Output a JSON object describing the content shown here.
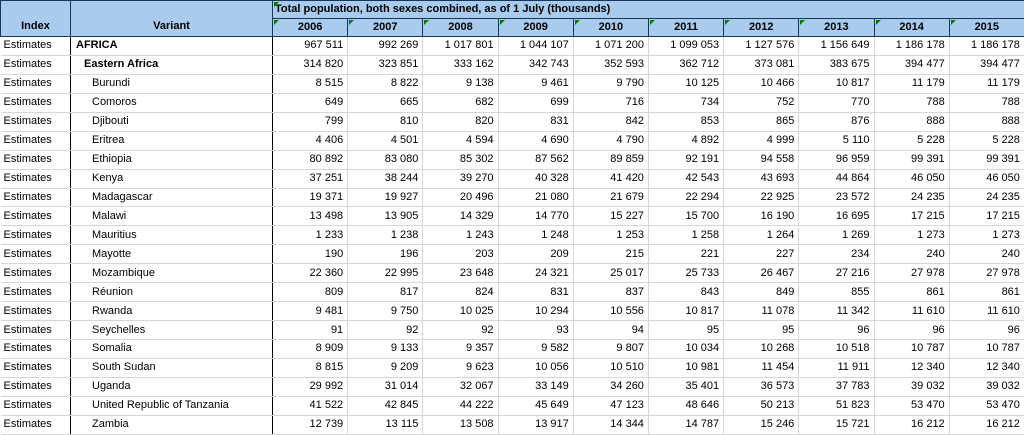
{
  "colors": {
    "header_bg": "#a9ccee",
    "header_border": "#16365c",
    "grid_line": "#d6d6d6",
    "column_border": "#000000",
    "comment_marker_green": "#008000"
  },
  "header": {
    "index_label": "Index",
    "variant_label": "Variant",
    "span_title": "Total population, both sexes combined, as of 1 July (thousands)",
    "years": [
      "2006",
      "2007",
      "2008",
      "2009",
      "2010",
      "2011",
      "2012",
      "2013",
      "2014",
      "2015"
    ]
  },
  "rows": [
    {
      "index": "Estimates",
      "name": "AFRICA",
      "level": 0,
      "bold": true,
      "values": [
        "967 511",
        "992 269",
        "1 017 801",
        "1 044 107",
        "1 071 200",
        "1 099 053",
        "1 127 576",
        "1 156 649",
        "1 186 178",
        "1 186 178"
      ]
    },
    {
      "index": "Estimates",
      "name": "Eastern Africa",
      "level": 1,
      "bold": true,
      "values": [
        "314 820",
        "323 851",
        "333 162",
        "342 743",
        "352 593",
        "362 712",
        "373 081",
        "383 675",
        "394 477",
        "394 477"
      ]
    },
    {
      "index": "Estimates",
      "name": "Burundi",
      "level": 2,
      "bold": false,
      "values": [
        "8 515",
        "8 822",
        "9 138",
        "9 461",
        "9 790",
        "10 125",
        "10 466",
        "10 817",
        "11 179",
        "11 179"
      ]
    },
    {
      "index": "Estimates",
      "name": "Comoros",
      "level": 2,
      "bold": false,
      "values": [
        "649",
        "665",
        "682",
        "699",
        "716",
        "734",
        "752",
        "770",
        "788",
        "788"
      ]
    },
    {
      "index": "Estimates",
      "name": "Djibouti",
      "level": 2,
      "bold": false,
      "values": [
        "799",
        "810",
        "820",
        "831",
        "842",
        "853",
        "865",
        "876",
        "888",
        "888"
      ]
    },
    {
      "index": "Estimates",
      "name": "Eritrea",
      "level": 2,
      "bold": false,
      "values": [
        "4 406",
        "4 501",
        "4 594",
        "4 690",
        "4 790",
        "4 892",
        "4 999",
        "5 110",
        "5 228",
        "5 228"
      ]
    },
    {
      "index": "Estimates",
      "name": "Ethiopia",
      "level": 2,
      "bold": false,
      "values": [
        "80 892",
        "83 080",
        "85 302",
        "87 562",
        "89 859",
        "92 191",
        "94 558",
        "96 959",
        "99 391",
        "99 391"
      ]
    },
    {
      "index": "Estimates",
      "name": "Kenya",
      "level": 2,
      "bold": false,
      "values": [
        "37 251",
        "38 244",
        "39 270",
        "40 328",
        "41 420",
        "42 543",
        "43 693",
        "44 864",
        "46 050",
        "46 050"
      ]
    },
    {
      "index": "Estimates",
      "name": "Madagascar",
      "level": 2,
      "bold": false,
      "values": [
        "19 371",
        "19 927",
        "20 496",
        "21 080",
        "21 679",
        "22 294",
        "22 925",
        "23 572",
        "24 235",
        "24 235"
      ]
    },
    {
      "index": "Estimates",
      "name": "Malawi",
      "level": 2,
      "bold": false,
      "values": [
        "13 498",
        "13 905",
        "14 329",
        "14 770",
        "15 227",
        "15 700",
        "16 190",
        "16 695",
        "17 215",
        "17 215"
      ]
    },
    {
      "index": "Estimates",
      "name": "Mauritius",
      "level": 2,
      "bold": false,
      "values": [
        "1 233",
        "1 238",
        "1 243",
        "1 248",
        "1 253",
        "1 258",
        "1 264",
        "1 269",
        "1 273",
        "1 273"
      ]
    },
    {
      "index": "Estimates",
      "name": "Mayotte",
      "level": 2,
      "bold": false,
      "values": [
        "190",
        "196",
        "203",
        "209",
        "215",
        "221",
        "227",
        "234",
        "240",
        "240"
      ]
    },
    {
      "index": "Estimates",
      "name": "Mozambique",
      "level": 2,
      "bold": false,
      "values": [
        "22 360",
        "22 995",
        "23 648",
        "24 321",
        "25 017",
        "25 733",
        "26 467",
        "27 216",
        "27 978",
        "27 978"
      ]
    },
    {
      "index": "Estimates",
      "name": "Réunion",
      "level": 2,
      "bold": false,
      "values": [
        "809",
        "817",
        "824",
        "831",
        "837",
        "843",
        "849",
        "855",
        "861",
        "861"
      ]
    },
    {
      "index": "Estimates",
      "name": "Rwanda",
      "level": 2,
      "bold": false,
      "values": [
        "9 481",
        "9 750",
        "10 025",
        "10 294",
        "10 556",
        "10 817",
        "11 078",
        "11 342",
        "11 610",
        "11 610"
      ]
    },
    {
      "index": "Estimates",
      "name": "Seychelles",
      "level": 2,
      "bold": false,
      "values": [
        "91",
        "92",
        "92",
        "93",
        "94",
        "95",
        "95",
        "96",
        "96",
        "96"
      ]
    },
    {
      "index": "Estimates",
      "name": "Somalia",
      "level": 2,
      "bold": false,
      "values": [
        "8 909",
        "9 133",
        "9 357",
        "9 582",
        "9 807",
        "10 034",
        "10 268",
        "10 518",
        "10 787",
        "10 787"
      ]
    },
    {
      "index": "Estimates",
      "name": "South Sudan",
      "level": 2,
      "bold": false,
      "values": [
        "8 815",
        "9 209",
        "9 623",
        "10 056",
        "10 510",
        "10 981",
        "11 454",
        "11 911",
        "12 340",
        "12 340"
      ]
    },
    {
      "index": "Estimates",
      "name": "Uganda",
      "level": 2,
      "bold": false,
      "values": [
        "29 992",
        "31 014",
        "32 067",
        "33 149",
        "34 260",
        "35 401",
        "36 573",
        "37 783",
        "39 032",
        "39 032"
      ]
    },
    {
      "index": "Estimates",
      "name": "United Republic of Tanzania",
      "level": 2,
      "bold": false,
      "values": [
        "41 522",
        "42 845",
        "44 222",
        "45 649",
        "47 123",
        "48 646",
        "50 213",
        "51 823",
        "53 470",
        "53 470"
      ]
    },
    {
      "index": "Estimates",
      "name": "Zambia",
      "level": 2,
      "bold": false,
      "values": [
        "12 739",
        "13 115",
        "13 508",
        "13 917",
        "14 344",
        "14 787",
        "15 246",
        "15 721",
        "16 212",
        "16 212"
      ]
    }
  ]
}
